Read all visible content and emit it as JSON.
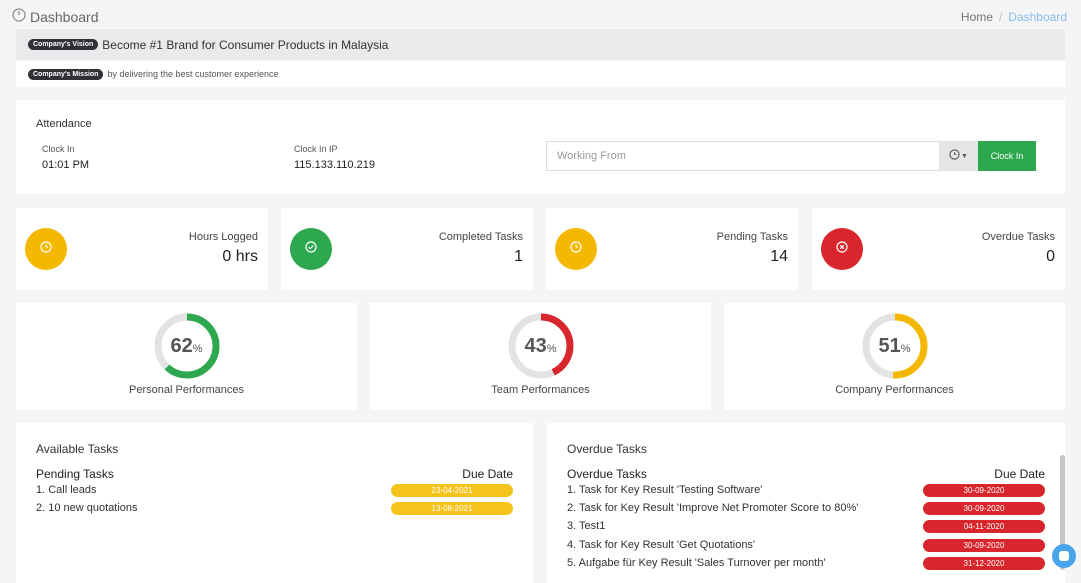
{
  "header": {
    "title": "Dashboard"
  },
  "breadcrumb": {
    "home": "Home",
    "separator": "/",
    "current": "Dashboard"
  },
  "vision": {
    "badge": "Company's Vision",
    "text": "Become #1 Brand for Consumer Products in Malaysia"
  },
  "mission": {
    "badge": "Company's Mission",
    "text": "by delivering the best customer experience"
  },
  "attendance": {
    "title": "Attendance",
    "clock_in_label": "Clock In",
    "clock_in_value": "01:01 PM",
    "ip_label": "Clock In IP",
    "ip_value": "115.133.110.219",
    "working_from_placeholder": "Working From",
    "clock_in_button": "Clock In"
  },
  "stats": [
    {
      "label": "Hours Logged",
      "value": "0 hrs",
      "color": "#f5b800",
      "icon": "clock-icon"
    },
    {
      "label": "Completed Tasks",
      "value": "1",
      "color": "#2ea84f",
      "icon": "check-circle-icon"
    },
    {
      "label": "Pending Tasks",
      "value": "14",
      "color": "#f5b800",
      "icon": "clock-icon"
    },
    {
      "label": "Overdue Tasks",
      "value": "0",
      "color": "#d9262d",
      "icon": "x-circle-icon"
    }
  ],
  "performance": [
    {
      "label": "Personal Performances",
      "value": "62",
      "unit": "%",
      "percent": 62,
      "color": "#2ea84f"
    },
    {
      "label": "Team Performances",
      "value": "43",
      "unit": "%",
      "percent": 43,
      "color": "#d9262d"
    },
    {
      "label": "Company Performances",
      "value": "51",
      "unit": "%",
      "percent": 51,
      "color": "#f5b800"
    }
  ],
  "available_tasks": {
    "title": "Available Tasks",
    "column_task": "Pending Tasks",
    "column_date": "Due Date",
    "rows": [
      {
        "task": "1. Call leads",
        "date": "23-04-2021"
      },
      {
        "task": "2. 10 new quotations",
        "date": "13-08-2021"
      }
    ]
  },
  "overdue_tasks": {
    "title": "Overdue Tasks",
    "column_task": "Overdue Tasks",
    "column_date": "Due Date",
    "rows": [
      {
        "task": "1. Task for Key Result 'Testing Software'",
        "date": "30-09-2020"
      },
      {
        "task": "2. Task for Key Result 'Improve Net Promoter Score to 80%'",
        "date": "30-09-2020"
      },
      {
        "task": "3. Test1",
        "date": "04-11-2020"
      },
      {
        "task": "4. Task for Key Result 'Get Quotations'",
        "date": "30-09-2020"
      },
      {
        "task": "5. Aufgabe für Key Result 'Sales Turnover per month'",
        "date": "31-12-2020"
      }
    ]
  }
}
